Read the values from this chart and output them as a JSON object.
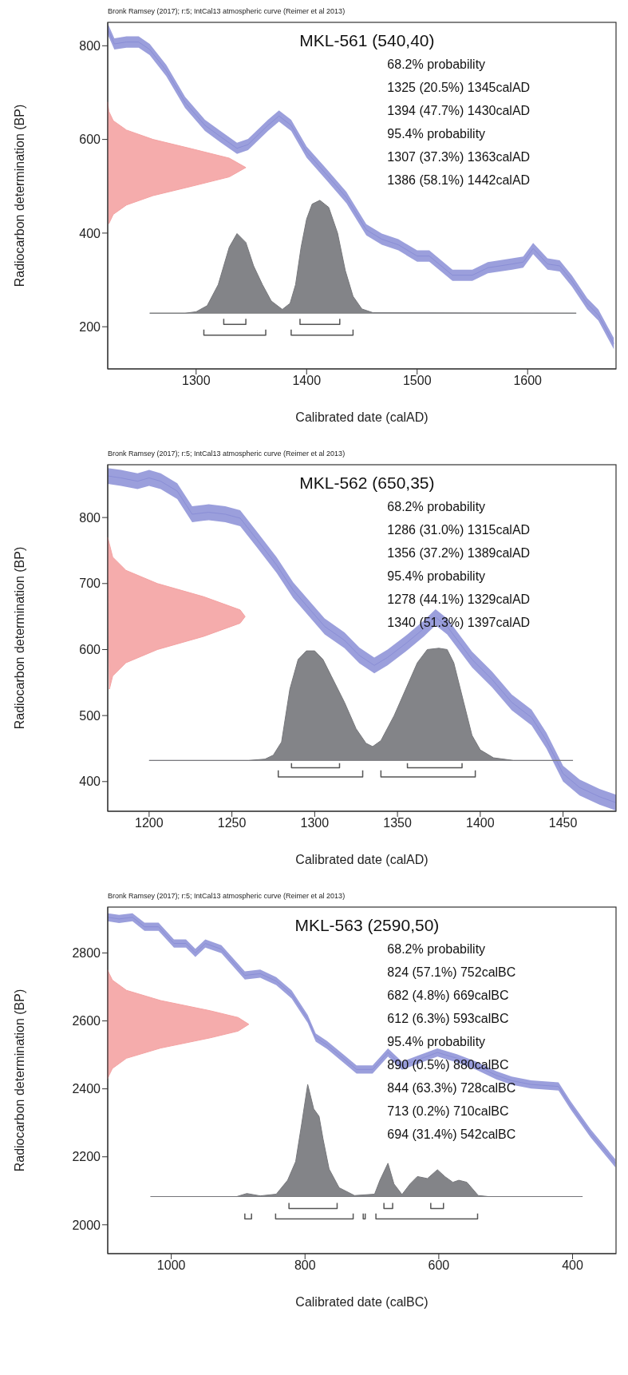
{
  "chart_data": [
    {
      "type": "line",
      "title": "MKL-561 (540,40)",
      "subtitle": "Bronk Ramsey (2017); r:5; IntCal13 atmospheric curve (Reimer et al 2013)",
      "xlabel": "Calibrated date (calAD)",
      "ylabel": "Radiocarbon determination (BP)",
      "annotations": [
        "68.2% probability",
        "1325 (20.5%) 1345calAD",
        "1394 (47.7%) 1430calAD",
        "95.4% probability",
        "1307 (37.3%) 1363calAD",
        "1386 (58.1%) 1442calAD"
      ],
      "xlim": [
        1220,
        1680
      ],
      "ylim": [
        110,
        850
      ],
      "xticks": [
        1300,
        1400,
        1500,
        1600
      ],
      "yticks": [
        200,
        400,
        600,
        800
      ],
      "series": [
        {
          "type": "line",
          "color": "#8a8ed6",
          "x": [
            1220,
            1226,
            1237,
            1248,
            1258,
            1273,
            1290,
            1308,
            1322,
            1337,
            1347,
            1365,
            1375,
            1386,
            1400,
            1418,
            1436,
            1454,
            1468,
            1483,
            1500,
            1511,
            1532,
            1550,
            1564,
            1586,
            1596,
            1605,
            1618,
            1629,
            1640,
            1654,
            1664,
            1678
          ],
          "values": [
            836,
            804,
            808,
            808,
            792,
            747,
            679,
            630,
            606,
            581,
            589,
            630,
            650,
            630,
            573,
            525,
            476,
            407,
            387,
            375,
            351,
            351,
            310,
            310,
            326,
            334,
            338,
            367,
            334,
            330,
            298,
            249,
            225,
            164
          ],
          "lower": [
            824,
            792,
            796,
            796,
            780,
            735,
            667,
            618,
            594,
            569,
            577,
            618,
            638,
            618,
            561,
            513,
            464,
            395,
            375,
            363,
            339,
            339,
            298,
            298,
            314,
            322,
            326,
            355,
            322,
            318,
            286,
            237,
            213,
            152
          ],
          "upper": [
            848,
            816,
            820,
            820,
            804,
            759,
            691,
            642,
            618,
            593,
            601,
            642,
            662,
            642,
            585,
            537,
            488,
            419,
            399,
            387,
            363,
            363,
            322,
            322,
            338,
            346,
            350,
            379,
            346,
            342,
            310,
            261,
            237,
            176
          ]
        },
        {
          "type": "area",
          "color": "#f4a3a3",
          "x": [
            1221,
            1225,
            1237,
            1261,
            1296,
            1330,
            1345,
            1330,
            1296,
            1261,
            1237,
            1225,
            1221,
            1220
          ],
          "values": [
            420,
            440,
            460,
            480,
            500,
            520,
            540,
            560,
            580,
            600,
            620,
            640,
            660,
            680
          ]
        },
        {
          "type": "area",
          "color": "#76777b",
          "x": [
            1258,
            1290,
            1300,
            1310,
            1320,
            1330,
            1337,
            1345,
            1352,
            1360,
            1368,
            1378,
            1385,
            1390,
            1395,
            1400,
            1405,
            1412,
            1420,
            1428,
            1435,
            1442,
            1450,
            1460,
            1644
          ],
          "values": [
            229,
            229,
            232,
            245,
            290,
            370,
            399,
            380,
            330,
            290,
            255,
            237,
            250,
            290,
            370,
            430,
            462,
            470,
            455,
            400,
            320,
            265,
            238,
            230,
            229
          ]
        },
        {
          "type": "line",
          "color": "#555555",
          "x": [
            1325,
            1325,
            1345,
            1345
          ],
          "values": [
            217,
            205,
            205,
            217
          ]
        },
        {
          "type": "line",
          "color": "#555555",
          "x": [
            1394,
            1394,
            1430,
            1430
          ],
          "values": [
            217,
            205,
            205,
            217
          ]
        },
        {
          "type": "line",
          "color": "#555555",
          "x": [
            1307,
            1307,
            1363,
            1363
          ],
          "values": [
            194,
            182,
            182,
            194
          ]
        },
        {
          "type": "line",
          "color": "#555555",
          "x": [
            1386,
            1386,
            1442,
            1442
          ],
          "values": [
            194,
            182,
            182,
            194
          ]
        }
      ]
    },
    {
      "type": "line",
      "title": "MKL-562 (650,35)",
      "subtitle": "Bronk Ramsey (2017); r:5; IntCal13 atmospheric curve (Reimer et al 2013)",
      "xlabel": "Calibrated date (calAD)",
      "ylabel": "Radiocarbon determination (BP)",
      "annotations": [
        "68.2% probability",
        "1286 (31.0%) 1315calAD",
        "1356 (37.2%) 1389calAD",
        "95.4% probability",
        "1278 (44.1%) 1329calAD",
        "1340 (51.3%) 1397calAD"
      ],
      "xlim": [
        1175,
        1482
      ],
      "ylim": [
        355,
        880
      ],
      "xticks": [
        1200,
        1250,
        1300,
        1350,
        1400,
        1450
      ],
      "yticks": [
        400,
        500,
        600,
        700,
        800
      ],
      "series": [
        {
          "type": "line",
          "color": "#8a8ed6",
          "x": [
            1175,
            1183,
            1193,
            1200,
            1207,
            1217,
            1226,
            1236,
            1246,
            1255,
            1265,
            1277,
            1287,
            1306,
            1318,
            1327,
            1336,
            1344,
            1356,
            1366,
            1373,
            1380,
            1395,
            1407,
            1419,
            1431,
            1440,
            1450,
            1460,
            1472,
            1482
          ],
          "values": [
            863,
            860,
            855,
            860,
            855,
            840,
            805,
            808,
            805,
            799,
            767,
            728,
            690,
            635,
            614,
            591,
            576,
            588,
            611,
            632,
            649,
            635,
            585,
            555,
            520,
            497,
            462,
            412,
            391,
            377,
            368
          ],
          "lower": [
            851,
            848,
            843,
            848,
            843,
            828,
            793,
            796,
            793,
            787,
            755,
            716,
            678,
            623,
            602,
            579,
            564,
            576,
            599,
            620,
            637,
            623,
            573,
            543,
            508,
            485,
            450,
            400,
            379,
            365,
            356
          ],
          "upper": [
            875,
            872,
            867,
            872,
            867,
            852,
            817,
            820,
            817,
            811,
            779,
            740,
            702,
            647,
            626,
            603,
            588,
            600,
            623,
            644,
            661,
            647,
            597,
            567,
            532,
            509,
            474,
            424,
            403,
            389,
            380
          ]
        },
        {
          "type": "area",
          "color": "#f4a3a3",
          "x": [
            1176,
            1178,
            1186,
            1205,
            1233,
            1255,
            1258,
            1255,
            1233,
            1205,
            1186,
            1178,
            1176,
            1175
          ],
          "values": [
            540,
            560,
            580,
            600,
            620,
            640,
            650,
            660,
            680,
            700,
            720,
            740,
            760,
            770
          ]
        },
        {
          "type": "area",
          "color": "#76777b",
          "x": [
            1200,
            1260,
            1270,
            1275,
            1280,
            1285,
            1290,
            1295,
            1300,
            1305,
            1310,
            1318,
            1325,
            1331,
            1335,
            1340,
            1348,
            1355,
            1362,
            1368,
            1375,
            1380,
            1384,
            1390,
            1395,
            1400,
            1408,
            1420,
            1456
          ],
          "values": [
            432,
            432,
            434,
            440,
            460,
            540,
            585,
            598,
            598,
            585,
            560,
            520,
            480,
            458,
            453,
            462,
            500,
            540,
            580,
            600,
            602,
            600,
            580,
            520,
            470,
            448,
            436,
            432,
            432
          ]
        },
        {
          "type": "line",
          "color": "#555555",
          "x": [
            1286,
            1286,
            1315,
            1315
          ],
          "values": [
            428,
            421,
            421,
            428
          ]
        },
        {
          "type": "line",
          "color": "#555555",
          "x": [
            1356,
            1356,
            1389,
            1389
          ],
          "values": [
            428,
            421,
            421,
            428
          ]
        },
        {
          "type": "line",
          "color": "#555555",
          "x": [
            1278,
            1278,
            1329,
            1329
          ],
          "values": [
            417,
            407,
            407,
            417
          ]
        },
        {
          "type": "line",
          "color": "#555555",
          "x": [
            1340,
            1340,
            1397,
            1397
          ],
          "values": [
            417,
            407,
            407,
            417
          ]
        }
      ]
    },
    {
      "type": "line",
      "title": "MKL-563 (2590,50)",
      "subtitle": "Bronk Ramsey (2017); r:5; IntCal13 atmospheric curve (Reimer et al 2013)",
      "xlabel": "Calibrated date (calBC)",
      "ylabel": "Radiocarbon determination (BP)",
      "annotations": [
        "68.2% probability",
        "824 (57.1%) 752calBC",
        "682 (4.8%) 669calBC",
        "612 (6.3%) 593calBC",
        "95.4% probability",
        "890 (0.5%) 880calBC",
        "844 (63.3%) 728calBC",
        "713 (0.2%) 710calBC",
        "694 (31.4%) 542calBC"
      ],
      "xlim": [
        1095,
        335
      ],
      "ylim": [
        1915,
        2935
      ],
      "xticks": [
        1000,
        800,
        600,
        400
      ],
      "yticks": [
        2000,
        2200,
        2400,
        2600,
        2800
      ],
      "series": [
        {
          "type": "line",
          "color": "#8a8ed6",
          "x": [
            1095,
            1078,
            1058,
            1040,
            1019,
            996,
            978,
            964,
            949,
            925,
            890,
            867,
            843,
            820,
            796,
            784,
            767,
            743,
            723,
            699,
            676,
            655,
            632,
            602,
            573,
            544,
            514,
            491,
            462,
            421,
            403,
            373,
            336
          ],
          "values": [
            2905,
            2900,
            2905,
            2877,
            2877,
            2828,
            2828,
            2800,
            2828,
            2811,
            2734,
            2739,
            2717,
            2678,
            2606,
            2551,
            2529,
            2490,
            2457,
            2457,
            2507,
            2468,
            2485,
            2507,
            2490,
            2468,
            2440,
            2424,
            2413,
            2407,
            2352,
            2269,
            2181
          ],
          "lower": [
            2893,
            2888,
            2893,
            2865,
            2865,
            2816,
            2816,
            2788,
            2816,
            2799,
            2722,
            2727,
            2705,
            2666,
            2594,
            2539,
            2517,
            2478,
            2445,
            2445,
            2495,
            2456,
            2473,
            2495,
            2478,
            2456,
            2428,
            2412,
            2401,
            2395,
            2340,
            2257,
            2169
          ],
          "upper": [
            2917,
            2912,
            2917,
            2889,
            2889,
            2840,
            2840,
            2812,
            2840,
            2823,
            2746,
            2751,
            2729,
            2690,
            2618,
            2563,
            2541,
            2502,
            2469,
            2469,
            2519,
            2480,
            2497,
            2519,
            2502,
            2480,
            2452,
            2436,
            2425,
            2419,
            2364,
            2281,
            2193
          ]
        },
        {
          "type": "area",
          "color": "#f4a3a3",
          "x": [
            1095,
            1093,
            1088,
            1067,
            1016,
            942,
            900,
            884,
            900,
            942,
            1016,
            1067,
            1088,
            1093,
            1095
          ],
          "values": [
            2430,
            2440,
            2460,
            2490,
            2520,
            2550,
            2570,
            2590,
            2610,
            2630,
            2660,
            2690,
            2720,
            2740,
            2750
          ]
        },
        {
          "type": "area",
          "color": "#76777b",
          "x": [
            1031,
            902,
            887,
            867,
            843,
            826,
            814,
            805,
            796,
            787,
            779,
            773,
            764,
            749,
            726,
            696,
            688,
            676,
            667,
            655,
            643,
            632,
            617,
            602,
            591,
            579,
            570,
            558,
            541,
            526,
            385
          ],
          "values": [
            2083,
            2083,
            2092,
            2085,
            2090,
            2131,
            2186,
            2297,
            2413,
            2341,
            2319,
            2252,
            2164,
            2109,
            2086,
            2090,
            2131,
            2181,
            2120,
            2089,
            2120,
            2142,
            2136,
            2162,
            2142,
            2125,
            2131,
            2125,
            2086,
            2083,
            2083
          ]
        },
        {
          "type": "line",
          "color": "#555555",
          "x": [
            824,
            824,
            752,
            752
          ],
          "values": [
            2064,
            2048,
            2048,
            2064
          ]
        },
        {
          "type": "line",
          "color": "#555555",
          "x": [
            682,
            682,
            669,
            669
          ],
          "values": [
            2064,
            2048,
            2048,
            2064
          ]
        },
        {
          "type": "line",
          "color": "#555555",
          "x": [
            612,
            612,
            593,
            593
          ],
          "values": [
            2064,
            2048,
            2048,
            2064
          ]
        },
        {
          "type": "line",
          "color": "#555555",
          "x": [
            890,
            890,
            880,
            880
          ],
          "values": [
            2033,
            2017,
            2017,
            2033
          ]
        },
        {
          "type": "line",
          "color": "#555555",
          "x": [
            844,
            844,
            728,
            728
          ],
          "values": [
            2033,
            2017,
            2017,
            2033
          ]
        },
        {
          "type": "line",
          "color": "#555555",
          "x": [
            713,
            713,
            710,
            710
          ],
          "values": [
            2033,
            2017,
            2017,
            2033
          ]
        },
        {
          "type": "line",
          "color": "#555555",
          "x": [
            694,
            694,
            542,
            542
          ],
          "values": [
            2033,
            2017,
            2017,
            2033
          ]
        }
      ]
    }
  ]
}
